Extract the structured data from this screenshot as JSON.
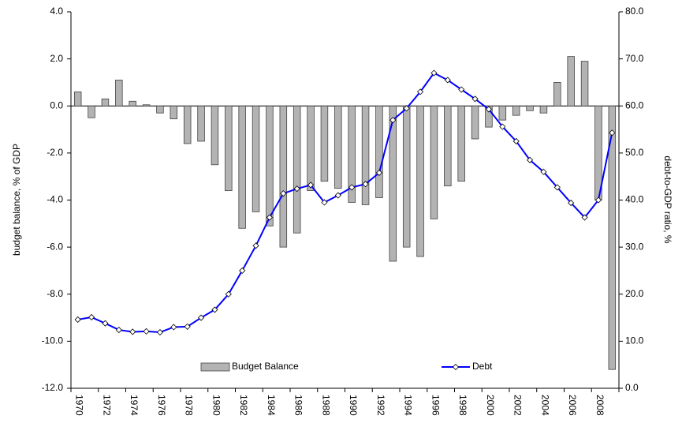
{
  "chart_data": {
    "type": "bar-line",
    "y_label": "budget balance, % of GDP",
    "y2_label": "debt-to-GDP ratio, %",
    "categories": [
      "1970",
      null,
      "1972",
      null,
      "1974",
      null,
      "1976",
      null,
      "1978",
      null,
      "1980",
      null,
      "1982",
      null,
      "1984",
      null,
      "1986",
      null,
      "1988",
      null,
      "1990",
      null,
      "1992",
      null,
      "1994",
      null,
      "1996",
      null,
      "1998",
      null,
      "2000",
      null,
      "2002",
      null,
      "2004",
      null,
      "2006",
      null,
      "2008",
      null
    ],
    "series": [
      {
        "name": "Budget Balance",
        "type": "bar",
        "color": "#b3b3b3",
        "values": [
          0.6,
          -0.5,
          0.3,
          1.1,
          0.2,
          0.05,
          -0.3,
          -0.55,
          -1.6,
          -1.5,
          -2.5,
          -3.6,
          -5.2,
          -4.5,
          -5.1,
          -6.0,
          -5.4,
          -3.6,
          -3.2,
          -3.5,
          -4.1,
          -4.2,
          -3.9,
          -6.6,
          -6.0,
          -6.4,
          -4.8,
          -3.4,
          -3.2,
          -1.4,
          -0.9,
          -0.6,
          -0.4,
          -0.2,
          -0.3,
          1.0,
          2.1,
          1.9,
          -4.0,
          -11.2
        ]
      },
      {
        "name": "Debt",
        "type": "line",
        "axis": "y2",
        "color": "#0000ff",
        "values": [
          14.6,
          15.1,
          13.8,
          12.4,
          12.0,
          12.1,
          11.9,
          13.0,
          13.1,
          15.0,
          16.7,
          20.0,
          25.0,
          30.3,
          36.3,
          41.4,
          42.4,
          43.2,
          39.5,
          41.0,
          42.7,
          43.4,
          45.8,
          57.0,
          59.5,
          63.0,
          67.0,
          65.5,
          63.5,
          61.5,
          59.3,
          55.6,
          52.5,
          48.5,
          46.0,
          42.7,
          39.4,
          36.3,
          40.0,
          54.3
        ]
      }
    ],
    "ylim": [
      -12,
      4
    ],
    "yticks": [
      {
        "value": -12,
        "label": "-12.0"
      },
      {
        "value": -10,
        "label": "-10.0"
      },
      {
        "value": -8,
        "label": "-8.0"
      },
      {
        "value": -6,
        "label": "-6.0"
      },
      {
        "value": -4,
        "label": "-4.0"
      },
      {
        "value": -2,
        "label": "-2.0"
      },
      {
        "value": 0,
        "label": "0.0"
      },
      {
        "value": 2,
        "label": "2.0"
      },
      {
        "value": 4,
        "label": "4.0"
      }
    ],
    "y2lim": [
      0,
      80
    ],
    "y2ticks": [
      {
        "value": 0,
        "label": "0.0"
      },
      {
        "value": 10,
        "label": "10.0"
      },
      {
        "value": 20,
        "label": "20.0"
      },
      {
        "value": 30,
        "label": "30.0"
      },
      {
        "value": 40,
        "label": "40.0"
      },
      {
        "value": 50,
        "label": "50.0"
      },
      {
        "value": 60,
        "label": "60.0"
      },
      {
        "value": 70,
        "label": "70.0"
      },
      {
        "value": 80,
        "label": "80.0"
      }
    ]
  }
}
